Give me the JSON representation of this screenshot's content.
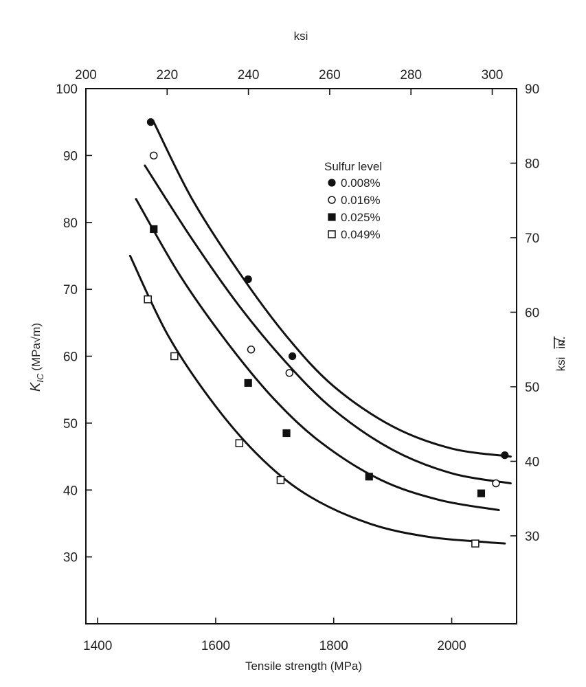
{
  "chart_data": {
    "type": "scatter",
    "title": "",
    "xlabel": "Tensile strength (MPa)",
    "ylabel": "K_IC (MPa√m)",
    "ylabel_main": "K",
    "ylabel_sub": "IC",
    "ylabel_unit": "(MPa√m)",
    "x2label": "ksi",
    "y2label": "ksi√in.",
    "y2label_main": "ksi",
    "y2label_root": "in.",
    "xlim": [
      1380,
      2110
    ],
    "ylim": [
      20,
      100
    ],
    "x2lim": [
      200,
      306
    ],
    "y2lim": [
      18.2,
      90
    ],
    "x_ticks": [
      1400,
      1600,
      1800,
      2000
    ],
    "y_ticks": [
      30,
      40,
      50,
      60,
      70,
      80,
      90,
      100
    ],
    "x2_ticks": [
      200,
      220,
      240,
      260,
      280,
      300
    ],
    "y2_ticks": [
      30,
      40,
      50,
      60,
      70,
      80,
      90
    ],
    "grid": false,
    "legend_title": "Sulfur level",
    "legend_position": "upper-right",
    "series": [
      {
        "name": "0.008%",
        "marker": "filled-circle",
        "points": [
          [
            1490,
            95
          ],
          [
            1655,
            71.5
          ],
          [
            1730,
            60
          ],
          [
            2090,
            45.2
          ]
        ],
        "curve": [
          [
            1495,
            95
          ],
          [
            1560,
            83.5
          ],
          [
            1640,
            72.5
          ],
          [
            1720,
            63
          ],
          [
            1800,
            55.5
          ],
          [
            1900,
            49.5
          ],
          [
            2000,
            46.2
          ],
          [
            2100,
            45
          ]
        ]
      },
      {
        "name": "0.016%",
        "marker": "open-circle",
        "points": [
          [
            1495,
            90
          ],
          [
            1660,
            61
          ],
          [
            1725,
            57.5
          ],
          [
            2075,
            41
          ]
        ],
        "curve": [
          [
            1480,
            88.5
          ],
          [
            1560,
            77.5
          ],
          [
            1640,
            67.5
          ],
          [
            1720,
            59
          ],
          [
            1800,
            52
          ],
          [
            1900,
            46
          ],
          [
            2000,
            42.5
          ],
          [
            2100,
            41
          ]
        ]
      },
      {
        "name": "0.025%",
        "marker": "filled-square",
        "points": [
          [
            1495,
            79
          ],
          [
            1655,
            56
          ],
          [
            1720,
            48.5
          ],
          [
            1860,
            42
          ],
          [
            2050,
            39.5
          ]
        ],
        "curve": [
          [
            1465,
            83.5
          ],
          [
            1540,
            72
          ],
          [
            1620,
            62
          ],
          [
            1700,
            53.5
          ],
          [
            1780,
            47
          ],
          [
            1880,
            41.5
          ],
          [
            1980,
            38.5
          ],
          [
            2080,
            37
          ]
        ]
      },
      {
        "name": "0.049%",
        "marker": "open-square",
        "points": [
          [
            1485,
            68.5
          ],
          [
            1530,
            60
          ],
          [
            1640,
            47
          ],
          [
            1710,
            41.5
          ],
          [
            2040,
            32
          ]
        ],
        "curve": [
          [
            1455,
            75
          ],
          [
            1520,
            63
          ],
          [
            1600,
            52.5
          ],
          [
            1680,
            44.5
          ],
          [
            1760,
            39
          ],
          [
            1860,
            35
          ],
          [
            1960,
            33
          ],
          [
            2060,
            32.2
          ],
          [
            2090,
            32
          ]
        ]
      }
    ]
  }
}
